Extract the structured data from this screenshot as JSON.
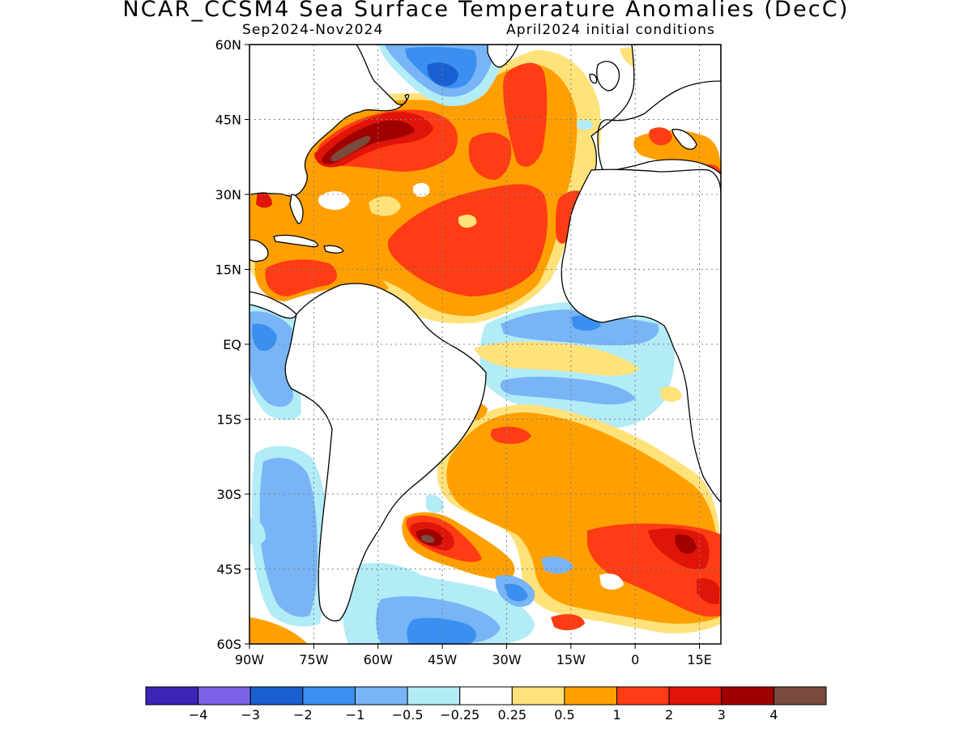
{
  "title": "NCAR_CCSM4 Sea Surface Temperature Anomalies (DecC)",
  "subtitle_left": "Sep2024-Nov2024",
  "subtitle_right": "April2024 initial conditions",
  "map": {
    "region": "Atlantic Ocean",
    "projection": "lat-lon",
    "lon_range": [
      -90,
      20
    ],
    "lat_range": [
      -60,
      60
    ],
    "lat_ticks": [
      {
        "value": 60,
        "label": "60N"
      },
      {
        "value": 45,
        "label": "45N"
      },
      {
        "value": 30,
        "label": "30N"
      },
      {
        "value": 15,
        "label": "15N"
      },
      {
        "value": 0,
        "label": "EQ"
      },
      {
        "value": -15,
        "label": "15S"
      },
      {
        "value": -30,
        "label": "30S"
      },
      {
        "value": -45,
        "label": "45S"
      },
      {
        "value": -60,
        "label": "60S"
      }
    ],
    "lon_ticks": [
      {
        "value": -90,
        "label": "90W"
      },
      {
        "value": -75,
        "label": "75W"
      },
      {
        "value": -60,
        "label": "60W"
      },
      {
        "value": -45,
        "label": "45W"
      },
      {
        "value": -30,
        "label": "30W"
      },
      {
        "value": -15,
        "label": "15W"
      },
      {
        "value": 0,
        "label": "0"
      },
      {
        "value": 15,
        "label": "15E"
      }
    ],
    "grid": "dotted",
    "field": "sea surface temperature anomaly"
  },
  "colorbar": {
    "colors": [
      "#3c24b4",
      "#7b62e6",
      "#1a5fd0",
      "#3a8ff0",
      "#78b4f6",
      "#b2ecf6",
      "#ffffff",
      "#ffe27a",
      "#ffa000",
      "#ff3c14",
      "#e01408",
      "#a00000",
      "#7a4a3c"
    ],
    "labels": [
      "-4",
      "-3",
      "-2",
      "-1",
      "-0.5",
      "-0.25",
      "0.25",
      "0.5",
      "1",
      "2",
      "3",
      "4"
    ]
  },
  "anomaly_features": [
    {
      "name": "NW Atlantic Gulf Stream warm maximum",
      "level": 4,
      "lon": -66,
      "lat": 40
    },
    {
      "name": "South Atlantic Brazil-Malvinas warm maximum",
      "level": 4,
      "lon": -49,
      "lat": -40
    },
    {
      "name": "SE Atlantic warm anomaly",
      "level": 3,
      "lon": 11,
      "lat": -40
    },
    {
      "name": "Tropical North Atlantic warm anomaly",
      "level": 2,
      "lon": -40,
      "lat": 20
    },
    {
      "name": "Caribbean warm anomaly",
      "level": 2,
      "lon": -77,
      "lat": 15
    },
    {
      "name": "Labrador Sea cool anomaly",
      "level": -2,
      "lon": -47,
      "lat": 55
    },
    {
      "name": "Eastern equatorial Atlantic cool anomaly",
      "level": -1,
      "lon": -10,
      "lat": 2
    },
    {
      "name": "Eastern Pacific cool anomaly",
      "level": -1,
      "lon": -86,
      "lat": 0
    },
    {
      "name": "SE Pacific cool anomaly",
      "level": -1,
      "lon": -82,
      "lat": -35
    },
    {
      "name": "Southern Ocean cool anomaly",
      "level": -1,
      "lon": -41,
      "lat": -55
    }
  ]
}
